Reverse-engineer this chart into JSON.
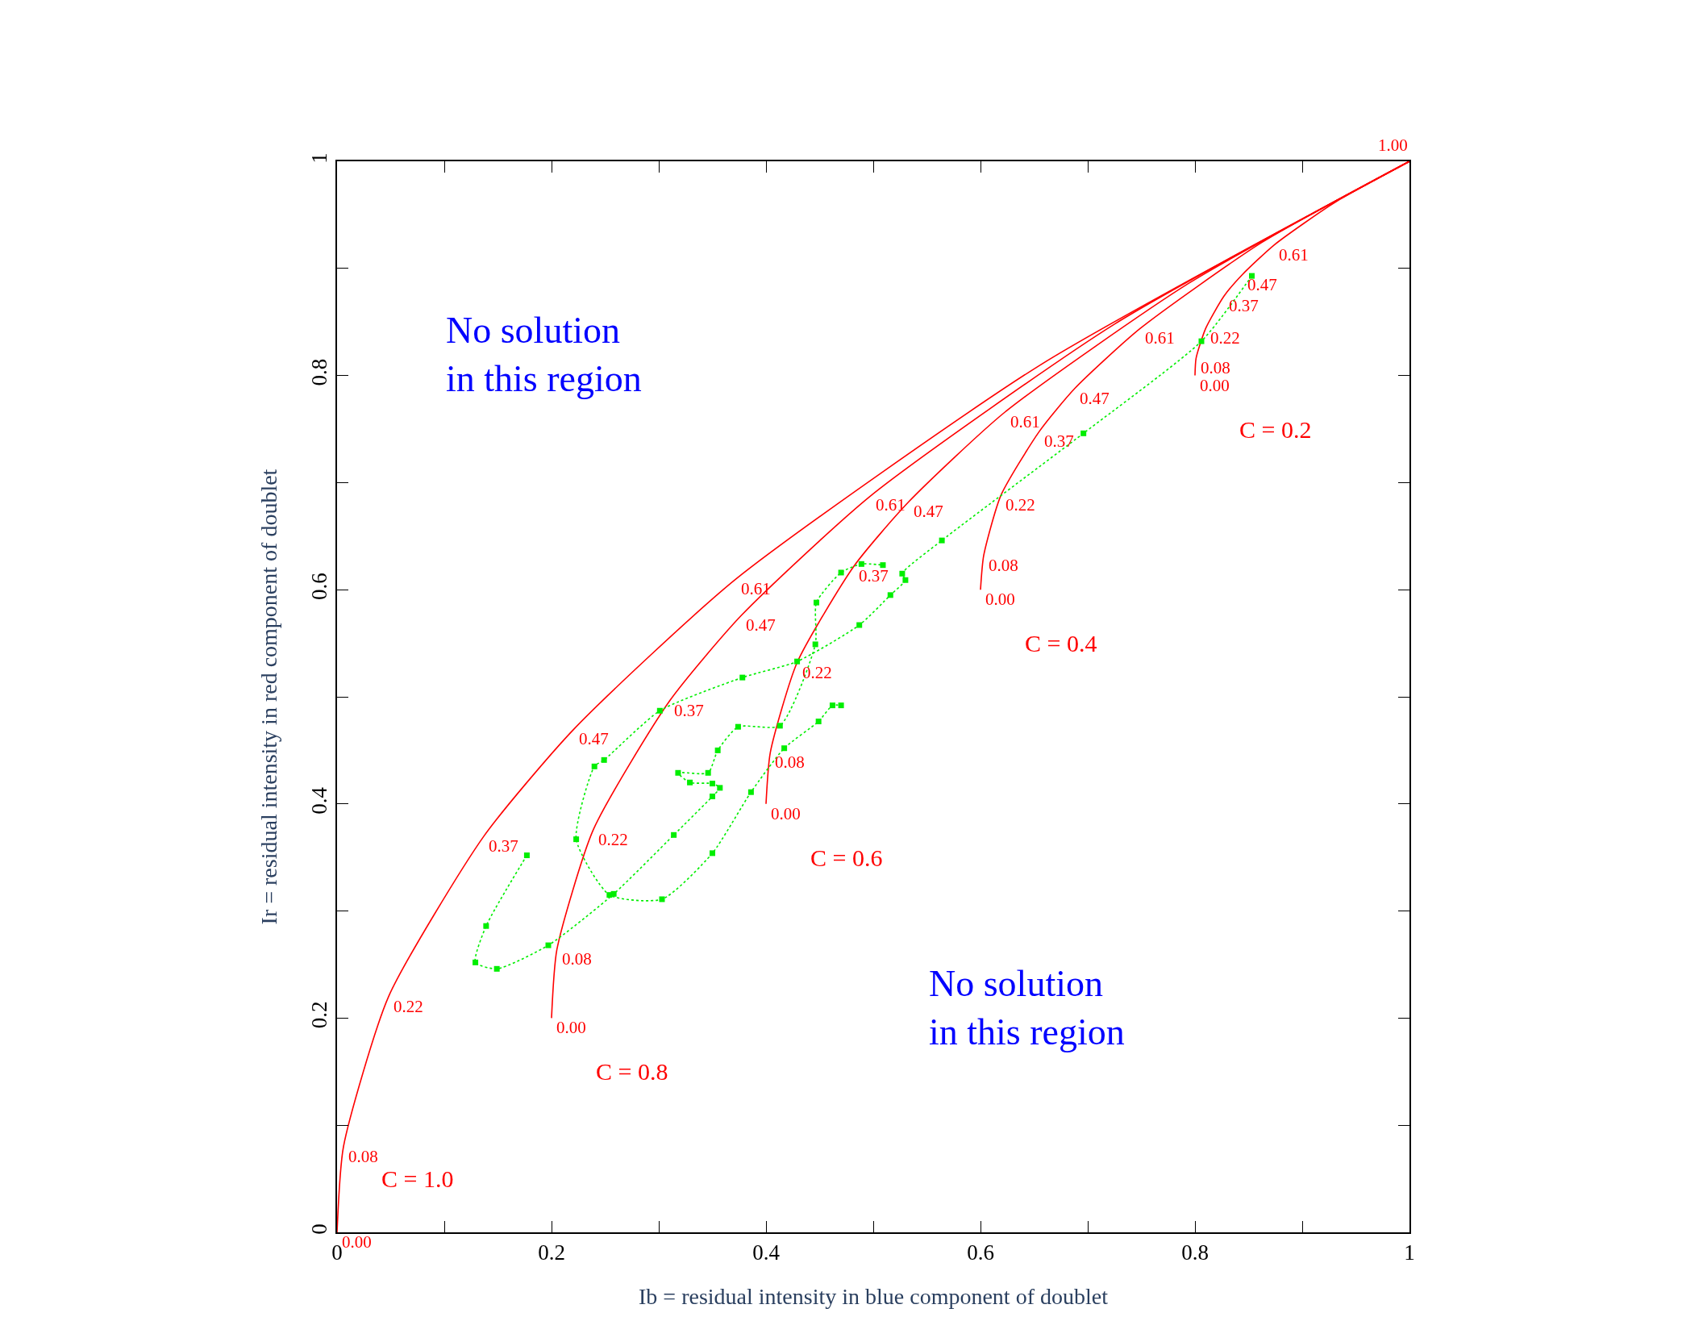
{
  "chart_data": {
    "type": "line",
    "xlabel": "Ib = residual intensity in blue component of doublet",
    "ylabel": "Ir = residual intensity in red component of doublet",
    "xlim": [
      0,
      1
    ],
    "ylim": [
      0,
      1
    ],
    "xticks": [
      0,
      {
        "value": 0.1,
        "label": null
      },
      0.2,
      {
        "value": 0.3,
        "label": null
      },
      0.4,
      {
        "value": 0.5,
        "label": null
      },
      0.6,
      {
        "value": 0.7,
        "label": null
      },
      0.8,
      {
        "value": 0.9,
        "label": null
      },
      1
    ],
    "yticks": [
      0,
      {
        "value": 0.1,
        "label": null
      },
      0.2,
      {
        "value": 0.3,
        "label": null
      },
      0.4,
      {
        "value": 0.5,
        "label": null
      },
      0.6,
      {
        "value": 0.7,
        "label": null
      },
      0.8,
      {
        "value": 0.9,
        "label": null
      },
      1
    ],
    "legend": false,
    "line_style": "solid",
    "marker": "none",
    "annotations": [
      "No solution\nin this region",
      "No solution\nin this region",
      {
        "text": "0.00",
        "x": 0,
        "y": 0
      },
      {
        "text": "0.08",
        "x": 0.006,
        "y": 0.08
      },
      {
        "text": "0.22",
        "x": 0.048,
        "y": 0.22
      },
      {
        "text": "0.37",
        "x": 0.137,
        "y": 0.37
      },
      {
        "text": "0.47",
        "x": 0.221,
        "y": 0.47
      },
      {
        "text": "0.61",
        "x": 0.372,
        "y": 0.61
      },
      {
        "text": "1.00",
        "x": 1,
        "y": 1
      },
      {
        "text": "0.00",
        "x": 0.2,
        "y": 0.2
      },
      {
        "text": "0.08",
        "x": 0.205,
        "y": 0.264
      },
      {
        "text": "0.22",
        "x": 0.239,
        "y": 0.376
      },
      {
        "text": "0.37",
        "x": 0.31,
        "y": 0.496
      },
      {
        "text": "0.47",
        "x": 0.377,
        "y": 0.576
      },
      {
        "text": "0.61",
        "x": 0.498,
        "y": 0.688
      },
      {
        "text": "0.00",
        "x": 0.4,
        "y": 0.4
      },
      {
        "text": "0.08",
        "x": 0.404,
        "y": 0.448
      },
      {
        "text": "0.22",
        "x": 0.429,
        "y": 0.532
      },
      {
        "text": "0.37",
        "x": 0.482,
        "y": 0.622
      },
      {
        "text": "0.47",
        "x": 0.533,
        "y": 0.682
      },
      {
        "text": "0.61",
        "x": 0.623,
        "y": 0.766
      },
      {
        "text": "0.00",
        "x": 0.6,
        "y": 0.6
      },
      {
        "text": "0.08",
        "x": 0.603,
        "y": 0.632
      },
      {
        "text": "0.22",
        "x": 0.619,
        "y": 0.688
      },
      {
        "text": "0.37",
        "x": 0.655,
        "y": 0.748
      },
      {
        "text": "0.47",
        "x": 0.688,
        "y": 0.788
      },
      {
        "text": "0.61",
        "x": 0.749,
        "y": 0.844
      },
      {
        "text": "0.00",
        "x": 0.8,
        "y": 0.8
      },
      {
        "text": "0.08",
        "x": 0.801,
        "y": 0.816
      },
      {
        "text": "0.22",
        "x": 0.81,
        "y": 0.844
      },
      {
        "text": "0.37",
        "x": 0.827,
        "y": 0.874
      },
      {
        "text": "0.47",
        "x": 0.844,
        "y": 0.894
      },
      {
        "text": "0.61",
        "x": 0.874,
        "y": 0.922
      }
    ],
    "series": [
      {
        "name": "C = 1.0",
        "color": "#ff0000",
        "x": [
          0,
          0.006,
          0.048,
          0.137,
          0.221,
          0.372,
          0.656,
          1
        ],
        "values": [
          0,
          0.08,
          0.22,
          0.37,
          0.47,
          0.61,
          0.81,
          1
        ]
      },
      {
        "name": "C = 0.8",
        "color": "#ff0000",
        "x": [
          0.2,
          0.205,
          0.239,
          0.31,
          0.377,
          0.498,
          0.725,
          1
        ],
        "values": [
          0.2,
          0.264,
          0.376,
          0.496,
          0.576,
          0.688,
          0.848,
          1
        ]
      },
      {
        "name": "C = 0.6",
        "color": "#ff0000",
        "x": [
          0.4,
          0.404,
          0.429,
          0.482,
          0.533,
          0.623,
          0.794,
          1
        ],
        "values": [
          0.4,
          0.448,
          0.532,
          0.622,
          0.682,
          0.766,
          0.886,
          1
        ]
      },
      {
        "name": "C = 0.4",
        "color": "#ff0000",
        "x": [
          0.6,
          0.603,
          0.619,
          0.655,
          0.688,
          0.749,
          0.862,
          1
        ],
        "values": [
          0.6,
          0.632,
          0.688,
          0.748,
          0.788,
          0.844,
          0.924,
          1
        ]
      },
      {
        "name": "C = 0.2",
        "color": "#ff0000",
        "x": [
          0.8,
          0.801,
          0.81,
          0.827,
          0.844,
          0.874,
          0.931,
          1
        ],
        "values": [
          0.8,
          0.816,
          0.844,
          0.874,
          0.894,
          0.922,
          0.962,
          1
        ]
      },
      {
        "color": "#00ee00",
        "line_style": "dotted",
        "marker": "square",
        "x": [
          0.853,
          0.806,
          0.696,
          0.564,
          0.527,
          0.53,
          0.516,
          0.487,
          0.429,
          0.378,
          0.301,
          0.249,
          0.24,
          0.223,
          0.254,
          0.303,
          0.35,
          0.386,
          0.417,
          0.449,
          0.462,
          0.47,
          null,
          0.177,
          0.139,
          0.129,
          0.149,
          0.197,
          0.258,
          0.314,
          0.35,
          0.357,
          0.35,
          0.329,
          0.318,
          0.346,
          0.355,
          0.374,
          0.413,
          0.446,
          0.447,
          0.47,
          0.489,
          0.509
        ],
        "values": [
          0.893,
          0.832,
          0.746,
          0.646,
          0.615,
          0.609,
          0.595,
          0.567,
          0.533,
          0.518,
          0.487,
          0.441,
          0.435,
          0.367,
          0.315,
          0.311,
          0.354,
          0.411,
          0.452,
          0.477,
          0.492,
          0.492,
          null,
          0.352,
          0.286,
          0.252,
          0.246,
          0.268,
          0.316,
          0.371,
          0.407,
          0.415,
          0.419,
          0.42,
          0.429,
          0.429,
          0.45,
          0.472,
          0.473,
          0.549,
          0.588,
          0.616,
          0.624,
          0.623
        ]
      }
    ]
  }
}
